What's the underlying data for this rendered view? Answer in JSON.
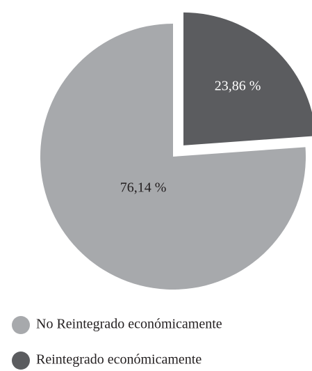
{
  "chart_data": {
    "type": "pie",
    "categories": [
      "No Reintegrado económicamente",
      "Reintegrado económicamente"
    ],
    "values": [
      76.14,
      23.86
    ],
    "value_labels": [
      "76,14 %",
      "23,86 %"
    ],
    "colors": [
      "#a7a9ac",
      "#5b5c5f"
    ],
    "label_colors": [
      "#231f20",
      "#ffffff"
    ],
    "explode": [
      false,
      true
    ],
    "legend": "bottom-left"
  }
}
